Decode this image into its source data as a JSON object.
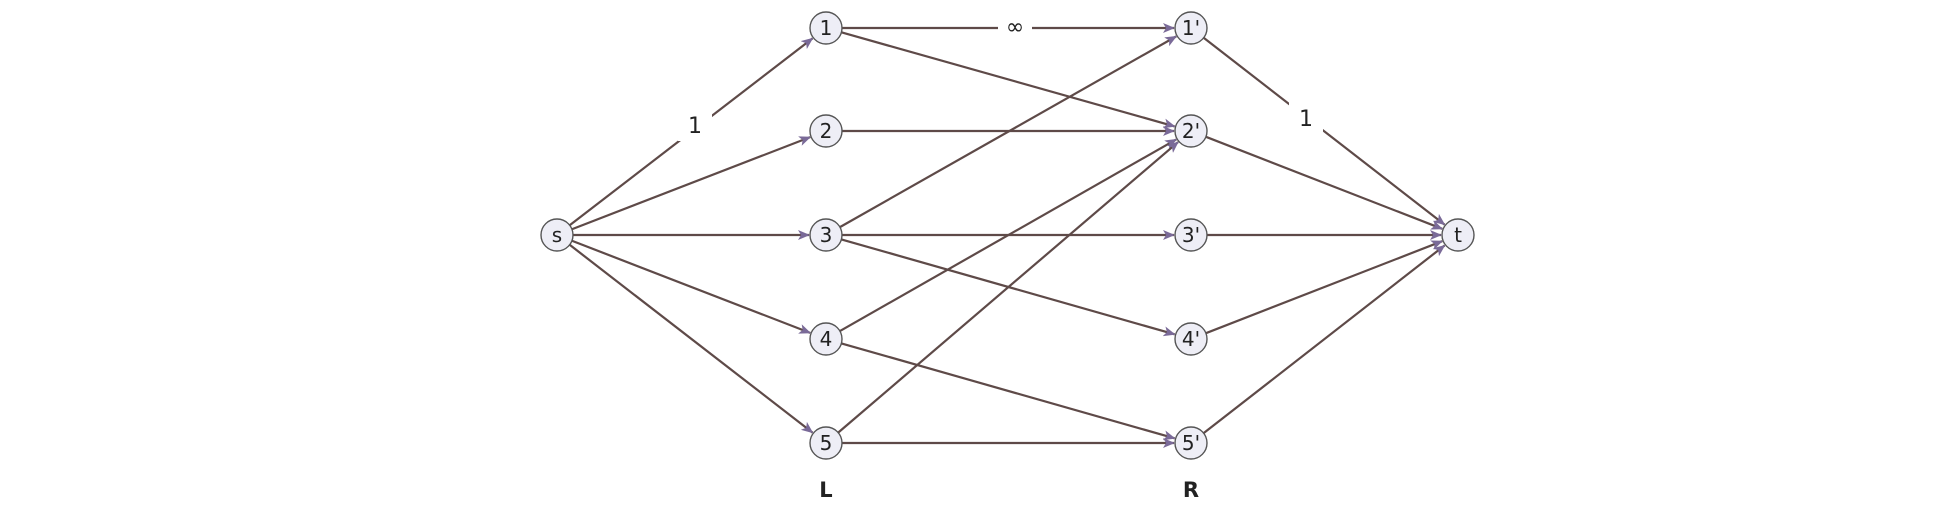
{
  "diagram": {
    "type": "bipartite flow network",
    "colors": {
      "edge": "#5e4a48",
      "arrowhead": "#7a6a98",
      "node_fill": "#eeeef6",
      "node_stroke": "#555555"
    },
    "nodes": [
      {
        "id": "s",
        "label": "s"
      },
      {
        "id": "1",
        "label": "1"
      },
      {
        "id": "2",
        "label": "2"
      },
      {
        "id": "3",
        "label": "3"
      },
      {
        "id": "4",
        "label": "4"
      },
      {
        "id": "5",
        "label": "5"
      },
      {
        "id": "1p",
        "label": "1'"
      },
      {
        "id": "2p",
        "label": "2'"
      },
      {
        "id": "3p",
        "label": "3'"
      },
      {
        "id": "4p",
        "label": "4'"
      },
      {
        "id": "5p",
        "label": "5'"
      },
      {
        "id": "t",
        "label": "t"
      }
    ],
    "edges": [
      {
        "from": "s",
        "to": "1",
        "label": "1"
      },
      {
        "from": "s",
        "to": "2"
      },
      {
        "from": "s",
        "to": "3"
      },
      {
        "from": "s",
        "to": "4"
      },
      {
        "from": "s",
        "to": "5"
      },
      {
        "from": "1",
        "to": "1p",
        "label": "∞"
      },
      {
        "from": "1",
        "to": "2p"
      },
      {
        "from": "2",
        "to": "2p"
      },
      {
        "from": "3",
        "to": "1p"
      },
      {
        "from": "3",
        "to": "3p"
      },
      {
        "from": "3",
        "to": "4p"
      },
      {
        "from": "4",
        "to": "2p"
      },
      {
        "from": "4",
        "to": "5p"
      },
      {
        "from": "5",
        "to": "2p"
      },
      {
        "from": "5",
        "to": "5p"
      },
      {
        "from": "1p",
        "to": "t",
        "label": "1"
      },
      {
        "from": "2p",
        "to": "t"
      },
      {
        "from": "3p",
        "to": "t"
      },
      {
        "from": "4p",
        "to": "t"
      },
      {
        "from": "5p",
        "to": "t"
      }
    ],
    "group_labels": {
      "left": "L",
      "right": "R"
    }
  }
}
